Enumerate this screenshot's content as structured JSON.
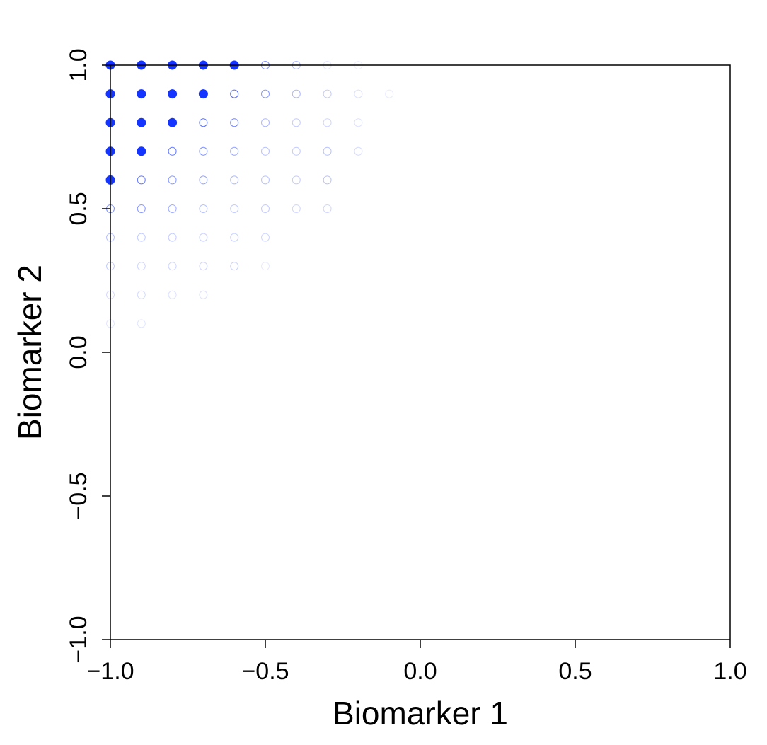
{
  "chart_data": {
    "type": "scatter",
    "title": "",
    "xlabel": "Biomarker 1",
    "ylabel": "Biomarker 2",
    "xlim": [
      -1.0,
      1.0
    ],
    "ylim": [
      -1.0,
      1.0
    ],
    "xticks": [
      -1.0,
      -0.5,
      0.0,
      0.5,
      1.0
    ],
    "yticks": [
      -1.0,
      -0.5,
      0.0,
      0.5,
      1.0
    ],
    "xtick_labels": [
      "−1.0",
      "−0.5",
      "0.0",
      "0.5",
      "1.0"
    ],
    "ytick_labels": [
      "−1.0",
      "−0.5",
      "0.0",
      "0.5",
      "1.0"
    ],
    "grid": false,
    "legend": "none",
    "color": "#1434ff",
    "filled_points": [
      {
        "x": -1.0,
        "y": 1.0
      },
      {
        "x": -0.9,
        "y": 1.0
      },
      {
        "x": -0.8,
        "y": 1.0
      },
      {
        "x": -0.7,
        "y": 1.0
      },
      {
        "x": -0.6,
        "y": 1.0
      },
      {
        "x": -1.0,
        "y": 0.9
      },
      {
        "x": -0.9,
        "y": 0.9
      },
      {
        "x": -0.8,
        "y": 0.9
      },
      {
        "x": -0.7,
        "y": 0.9
      },
      {
        "x": -1.0,
        "y": 0.8
      },
      {
        "x": -0.9,
        "y": 0.8
      },
      {
        "x": -0.8,
        "y": 0.8
      },
      {
        "x": -1.0,
        "y": 0.7
      },
      {
        "x": -0.9,
        "y": 0.7
      },
      {
        "x": -1.0,
        "y": 0.6
      }
    ],
    "open_points": [
      {
        "x": -0.5,
        "y": 1.0,
        "opacity": 0.55
      },
      {
        "x": -0.4,
        "y": 1.0,
        "opacity": 0.35
      },
      {
        "x": -0.3,
        "y": 1.0,
        "opacity": 0.12
      },
      {
        "x": -0.2,
        "y": 1.0,
        "opacity": 0.08
      },
      {
        "x": -0.6,
        "y": 0.9,
        "opacity": 0.75
      },
      {
        "x": -0.5,
        "y": 0.9,
        "opacity": 0.5
      },
      {
        "x": -0.4,
        "y": 0.9,
        "opacity": 0.35
      },
      {
        "x": -0.3,
        "y": 0.9,
        "opacity": 0.25
      },
      {
        "x": -0.2,
        "y": 0.9,
        "opacity": 0.15
      },
      {
        "x": -0.1,
        "y": 0.9,
        "opacity": 0.1
      },
      {
        "x": -0.7,
        "y": 0.8,
        "opacity": 0.7
      },
      {
        "x": -0.6,
        "y": 0.8,
        "opacity": 0.6
      },
      {
        "x": -0.5,
        "y": 0.8,
        "opacity": 0.35
      },
      {
        "x": -0.4,
        "y": 0.8,
        "opacity": 0.25
      },
      {
        "x": -0.3,
        "y": 0.8,
        "opacity": 0.2
      },
      {
        "x": -0.2,
        "y": 0.8,
        "opacity": 0.15
      },
      {
        "x": -0.8,
        "y": 0.7,
        "opacity": 0.65
      },
      {
        "x": -0.7,
        "y": 0.7,
        "opacity": 0.55
      },
      {
        "x": -0.6,
        "y": 0.7,
        "opacity": 0.45
      },
      {
        "x": -0.5,
        "y": 0.7,
        "opacity": 0.3
      },
      {
        "x": -0.4,
        "y": 0.7,
        "opacity": 0.25
      },
      {
        "x": -0.3,
        "y": 0.7,
        "opacity": 0.3
      },
      {
        "x": -0.2,
        "y": 0.7,
        "opacity": 0.18
      },
      {
        "x": -0.9,
        "y": 0.6,
        "opacity": 0.65
      },
      {
        "x": -0.8,
        "y": 0.6,
        "opacity": 0.5
      },
      {
        "x": -0.7,
        "y": 0.6,
        "opacity": 0.45
      },
      {
        "x": -0.6,
        "y": 0.6,
        "opacity": 0.35
      },
      {
        "x": -0.5,
        "y": 0.6,
        "opacity": 0.3
      },
      {
        "x": -0.4,
        "y": 0.6,
        "opacity": 0.25
      },
      {
        "x": -0.3,
        "y": 0.6,
        "opacity": 0.3
      },
      {
        "x": -1.0,
        "y": 0.5,
        "opacity": 0.55
      },
      {
        "x": -0.9,
        "y": 0.5,
        "opacity": 0.5
      },
      {
        "x": -0.8,
        "y": 0.5,
        "opacity": 0.4
      },
      {
        "x": -0.7,
        "y": 0.5,
        "opacity": 0.3
      },
      {
        "x": -0.6,
        "y": 0.5,
        "opacity": 0.25
      },
      {
        "x": -0.5,
        "y": 0.5,
        "opacity": 0.25
      },
      {
        "x": -0.4,
        "y": 0.5,
        "opacity": 0.2
      },
      {
        "x": -0.3,
        "y": 0.5,
        "opacity": 0.2
      },
      {
        "x": -1.0,
        "y": 0.4,
        "opacity": 0.3
      },
      {
        "x": -0.9,
        "y": 0.4,
        "opacity": 0.25
      },
      {
        "x": -0.8,
        "y": 0.4,
        "opacity": 0.25
      },
      {
        "x": -0.7,
        "y": 0.4,
        "opacity": 0.22
      },
      {
        "x": -0.6,
        "y": 0.4,
        "opacity": 0.22
      },
      {
        "x": -0.5,
        "y": 0.4,
        "opacity": 0.2
      },
      {
        "x": -1.0,
        "y": 0.3,
        "opacity": 0.25
      },
      {
        "x": -0.9,
        "y": 0.3,
        "opacity": 0.2
      },
      {
        "x": -0.8,
        "y": 0.3,
        "opacity": 0.2
      },
      {
        "x": -0.7,
        "y": 0.3,
        "opacity": 0.2
      },
      {
        "x": -0.6,
        "y": 0.3,
        "opacity": 0.22
      },
      {
        "x": -0.5,
        "y": 0.3,
        "opacity": 0.1
      },
      {
        "x": -1.0,
        "y": 0.2,
        "opacity": 0.18
      },
      {
        "x": -0.9,
        "y": 0.2,
        "opacity": 0.18
      },
      {
        "x": -0.8,
        "y": 0.2,
        "opacity": 0.15
      },
      {
        "x": -0.7,
        "y": 0.2,
        "opacity": 0.15
      },
      {
        "x": -1.0,
        "y": 0.1,
        "opacity": 0.12
      },
      {
        "x": -0.9,
        "y": 0.1,
        "opacity": 0.12
      }
    ]
  }
}
